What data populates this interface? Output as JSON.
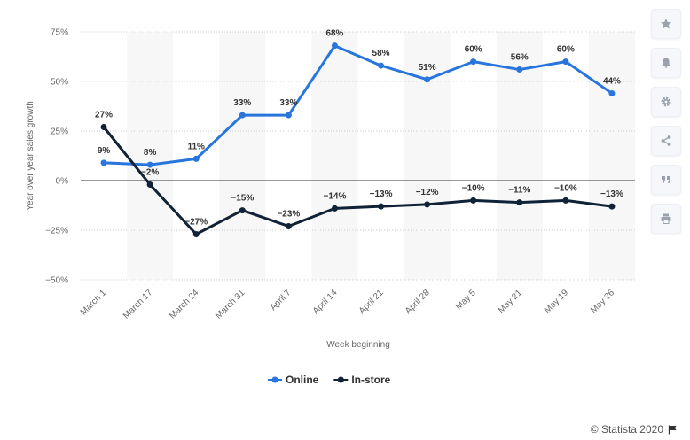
{
  "chart_data": {
    "type": "line",
    "title": "",
    "categories": [
      "March 1",
      "March 17",
      "March 24",
      "March 31",
      "April 7",
      "April 14",
      "April 21",
      "April 28",
      "May 5",
      "May 21",
      "May 19",
      "May 26"
    ],
    "series": [
      {
        "name": "Online",
        "color": "#2876dd",
        "values": [
          9,
          8,
          11,
          33,
          33,
          68,
          58,
          51,
          60,
          56,
          60,
          44
        ],
        "labels": [
          "9%",
          "8%",
          "11%",
          "33%",
          "33%",
          "68%",
          "58%",
          "51%",
          "60%",
          "56%",
          "60%",
          "44%"
        ]
      },
      {
        "name": "In-store",
        "color": "#0f2236",
        "values": [
          27,
          -2,
          -27,
          -15,
          -23,
          -14,
          -13,
          -12,
          -10,
          -11,
          -10,
          -13
        ],
        "labels": [
          "27%",
          "−2%",
          "−27%",
          "−15%",
          "−23%",
          "−14%",
          "−13%",
          "−12%",
          "−10%",
          "−11%",
          "−10%",
          "−13%"
        ]
      }
    ],
    "yticks": [
      75,
      50,
      25,
      0,
      -25,
      -50
    ],
    "ytick_labels": [
      "75%",
      "50%",
      "25%",
      "0%",
      "−25%",
      "−50%"
    ],
    "ylim": [
      -50,
      75
    ],
    "xlabel": "Week beginning",
    "ylabel": "Year over year sales growth",
    "grid": true,
    "legend_position": "bottom-center"
  },
  "sidebar": {
    "icons": [
      "star-icon",
      "bell-icon",
      "gear-icon",
      "share-icon",
      "quote-icon",
      "print-icon"
    ]
  },
  "credit": {
    "text": "© Statista 2020",
    "icon": "flag-icon"
  }
}
